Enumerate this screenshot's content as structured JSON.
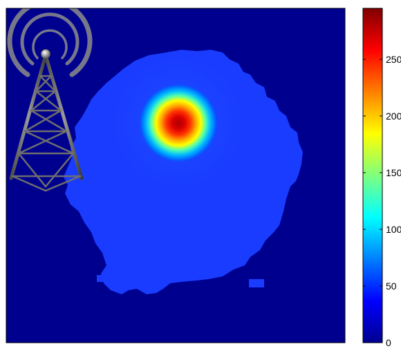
{
  "chart_data": {
    "type": "heatmap",
    "title": "",
    "xlabel": "",
    "ylabel": "",
    "axes_ticks_visible": false,
    "grid": false,
    "background_value": 0,
    "peak": {
      "x": 0.51,
      "y": 0.34,
      "value": 290
    },
    "coverage_region_level": 45,
    "colorbar": {
      "colormap": "jet",
      "range": [
        0,
        295
      ],
      "ticks": [
        0,
        50,
        100,
        150,
        200,
        250
      ],
      "tick_labels": [
        "0",
        "50",
        "100",
        "150",
        "200",
        "250"
      ],
      "placement": "right"
    },
    "overlay": {
      "icon": "radio-tower-icon",
      "position": "top-left"
    }
  }
}
